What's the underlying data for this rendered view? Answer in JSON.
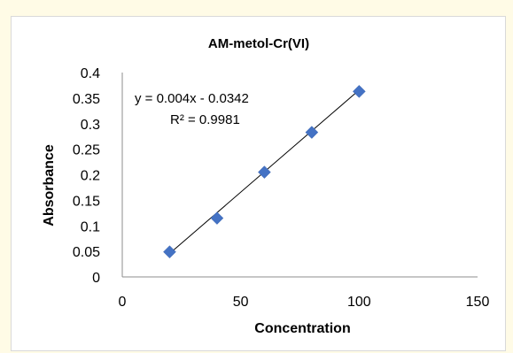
{
  "chart_data": {
    "type": "scatter",
    "title": "AM-metol-Cr(VI)",
    "xlabel": "Concentration",
    "ylabel": "Absorbance",
    "xlim": [
      0,
      150
    ],
    "ylim": [
      0,
      0.4
    ],
    "x_ticks": [
      "0",
      "50",
      "100",
      "150"
    ],
    "y_ticks": [
      "0",
      "0.05",
      "0.1",
      "0.15",
      "0.2",
      "0.25",
      "0.3",
      "0.35",
      "0.4"
    ],
    "series": [
      {
        "x": [
          20,
          40,
          60,
          80,
          100
        ],
        "y": [
          0.049,
          0.115,
          0.205,
          0.283,
          0.363
        ],
        "color": "#4472c4",
        "marker": "diamond"
      }
    ],
    "trendline": {
      "type": "linear",
      "slope": 0.004,
      "intercept": -0.0342,
      "x_range": [
        20,
        100
      ],
      "color": "#000000"
    },
    "annotations": {
      "equation": "y = 0.004x - 0.0342",
      "r_squared": "R² = 0.9981"
    },
    "grid": false,
    "legend": "none"
  }
}
